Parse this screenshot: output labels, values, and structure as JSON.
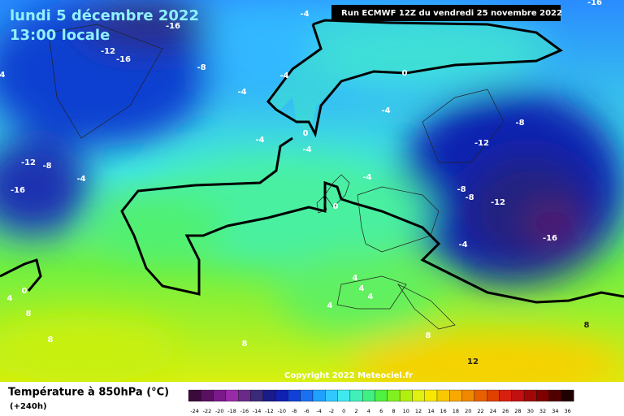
{
  "header": {
    "date": "lundi 5 décembre 2022",
    "time": "13:00 locale",
    "run": "Run ECMWF 12Z du vendredi 25 novembre 2022"
  },
  "map_labels": [
    "-16",
    "-12",
    "-16",
    "-8",
    "-4",
    "-4",
    "0",
    "-4",
    "-4",
    "-8",
    "0",
    "-4",
    "-4",
    "-12",
    "-12",
    "-8",
    "-4",
    "-16",
    "-4",
    "-8",
    "-8",
    "-12",
    "0",
    "-16",
    "-4",
    "0",
    "4",
    "4",
    "4",
    "4",
    "4",
    "8",
    "8",
    "8",
    "8",
    "8",
    "12",
    "-16",
    "4"
  ],
  "copyright": "Copyright 2022 Meteociel.fr",
  "legend": {
    "title": "Température à 850hPa (°C)",
    "subtitle": "(+240h)",
    "ticks": [
      -24,
      -22,
      -20,
      -18,
      -16,
      -14,
      -12,
      -10,
      -8,
      -6,
      -4,
      -2,
      0,
      2,
      4,
      6,
      8,
      10,
      12,
      14,
      16,
      18,
      20,
      22,
      24,
      26,
      28,
      30,
      32,
      34,
      36
    ],
    "colors": [
      "#3a0a3a",
      "#5a1060",
      "#7a1a8a",
      "#9a2aa8",
      "#6a2a8a",
      "#3a2a7a",
      "#1a1a8a",
      "#1020b0",
      "#1040d8",
      "#1a70f0",
      "#20a0ff",
      "#30c8ff",
      "#40e8f0",
      "#40f0b8",
      "#40f080",
      "#50f040",
      "#80f020",
      "#b0f010",
      "#e0f010",
      "#f8e800",
      "#f8c800",
      "#f8a800",
      "#f08800",
      "#e86000",
      "#e04000",
      "#d82010",
      "#c01010",
      "#a00808",
      "#800000",
      "#500000",
      "#200000"
    ]
  }
}
